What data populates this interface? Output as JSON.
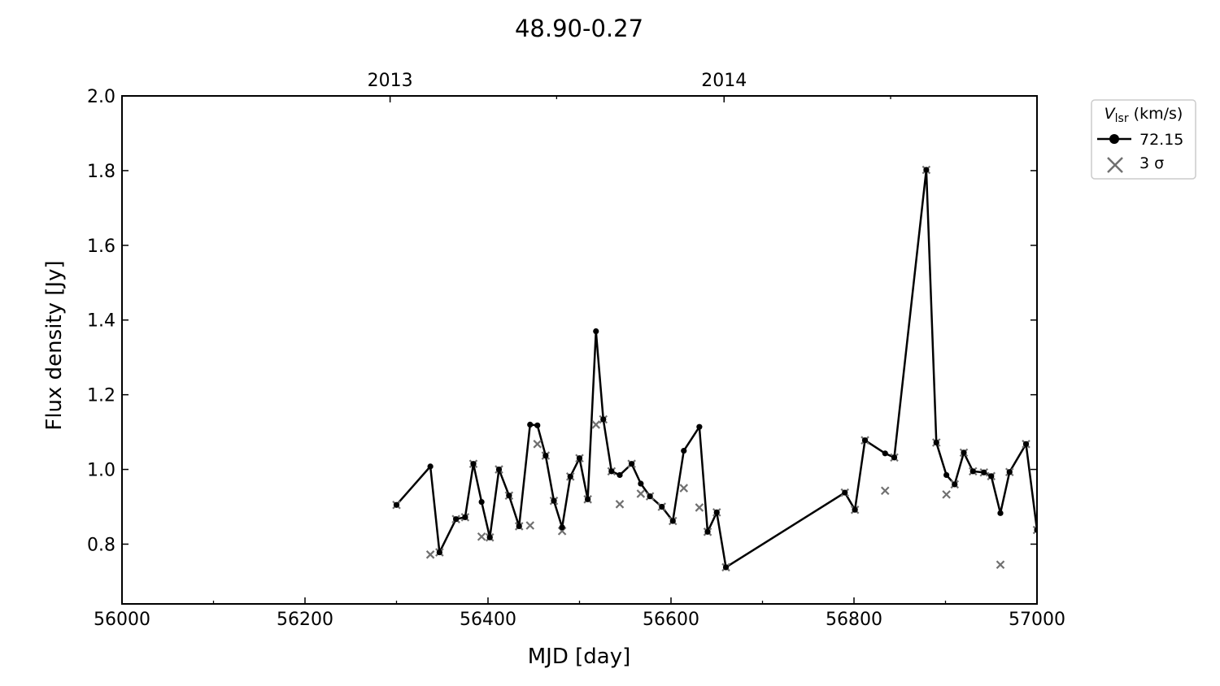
{
  "chart_data": {
    "type": "line",
    "title": "48.90-0.27",
    "xlabel": "MJD [day]",
    "ylabel": "Flux density [Jy]",
    "xlim": [
      56000,
      57000
    ],
    "ylim": [
      0.64,
      2.0
    ],
    "x_ticks": [
      56000,
      56200,
      56400,
      56600,
      56800,
      57000
    ],
    "x_minor_ticks": [
      56100,
      56300,
      56500,
      56700,
      56900
    ],
    "y_ticks": [
      0.8,
      1.0,
      1.2,
      1.4,
      1.6,
      1.8,
      2.0
    ],
    "top_axis": {
      "ticks": [
        {
          "mjd": 56293,
          "label": "2013"
        },
        {
          "mjd": 56658,
          "label": "2014"
        }
      ],
      "minor_ticks": [
        56475,
        56840
      ]
    },
    "legend": {
      "title_main": "V",
      "title_sub": "lsr",
      "title_unit": " (km/s)",
      "placement": "outside-top-right",
      "entries": [
        {
          "label": "72.15",
          "marker": "circle-line",
          "color": "#000000"
        },
        {
          "label": "3 σ",
          "marker": "x",
          "color": "#707070"
        }
      ]
    },
    "grid": false,
    "series": [
      {
        "name": "72.15",
        "color": "#000000",
        "style": "line-circle",
        "x": [
          56300,
          56337,
          56347,
          56365,
          56375,
          56384,
          56393,
          56402,
          56412,
          56423,
          56434,
          56446,
          56454,
          56463,
          56472,
          56481,
          56490,
          56500,
          56509,
          56518,
          56526,
          56535,
          56544,
          56557,
          56567,
          56577,
          56590,
          56602,
          56614,
          56631,
          56640,
          56650,
          56660,
          56790,
          56801,
          56812,
          56834,
          56844,
          56879,
          56890,
          56901,
          56910,
          56920,
          56930,
          56942,
          56950,
          56960,
          56970,
          56988,
          57000
        ],
        "y": [
          0.905,
          1.008,
          0.778,
          0.867,
          0.872,
          1.015,
          0.913,
          0.818,
          1.0,
          0.93,
          0.848,
          1.12,
          1.118,
          1.037,
          0.916,
          0.845,
          0.981,
          1.03,
          0.92,
          1.37,
          1.134,
          0.995,
          0.985,
          1.015,
          0.962,
          0.928,
          0.9,
          0.862,
          1.05,
          1.114,
          0.833,
          0.885,
          0.738,
          0.938,
          0.892,
          1.078,
          1.043,
          1.032,
          1.802,
          1.072,
          0.985,
          0.96,
          1.045,
          0.995,
          0.992,
          0.982,
          0.883,
          0.993,
          1.068,
          0.838
        ]
      },
      {
        "name": "3 σ",
        "color": "#707070",
        "style": "x-marker",
        "x": [
          56300,
          56337,
          56347,
          56365,
          56375,
          56384,
          56393,
          56402,
          56412,
          56423,
          56434,
          56446,
          56454,
          56463,
          56472,
          56481,
          56490,
          56500,
          56509,
          56518,
          56526,
          56535,
          56544,
          56557,
          56567,
          56577,
          56590,
          56602,
          56614,
          56631,
          56640,
          56650,
          56660,
          56790,
          56801,
          56812,
          56834,
          56844,
          56879,
          56890,
          56901,
          56910,
          56920,
          56930,
          56942,
          56950,
          56960,
          56970,
          56988,
          57000
        ],
        "y": [
          0.905,
          0.772,
          0.778,
          0.867,
          0.872,
          1.015,
          0.82,
          0.818,
          1.0,
          0.93,
          0.848,
          0.85,
          1.068,
          1.037,
          0.916,
          0.835,
          0.981,
          1.03,
          0.92,
          1.12,
          1.134,
          0.995,
          0.907,
          1.015,
          0.935,
          0.928,
          0.9,
          0.862,
          0.95,
          0.898,
          0.833,
          0.885,
          0.738,
          0.938,
          0.892,
          1.078,
          0.943,
          1.032,
          1.802,
          1.072,
          0.933,
          0.96,
          1.045,
          0.995,
          0.992,
          0.982,
          0.745,
          0.993,
          1.068,
          0.838
        ]
      }
    ]
  }
}
